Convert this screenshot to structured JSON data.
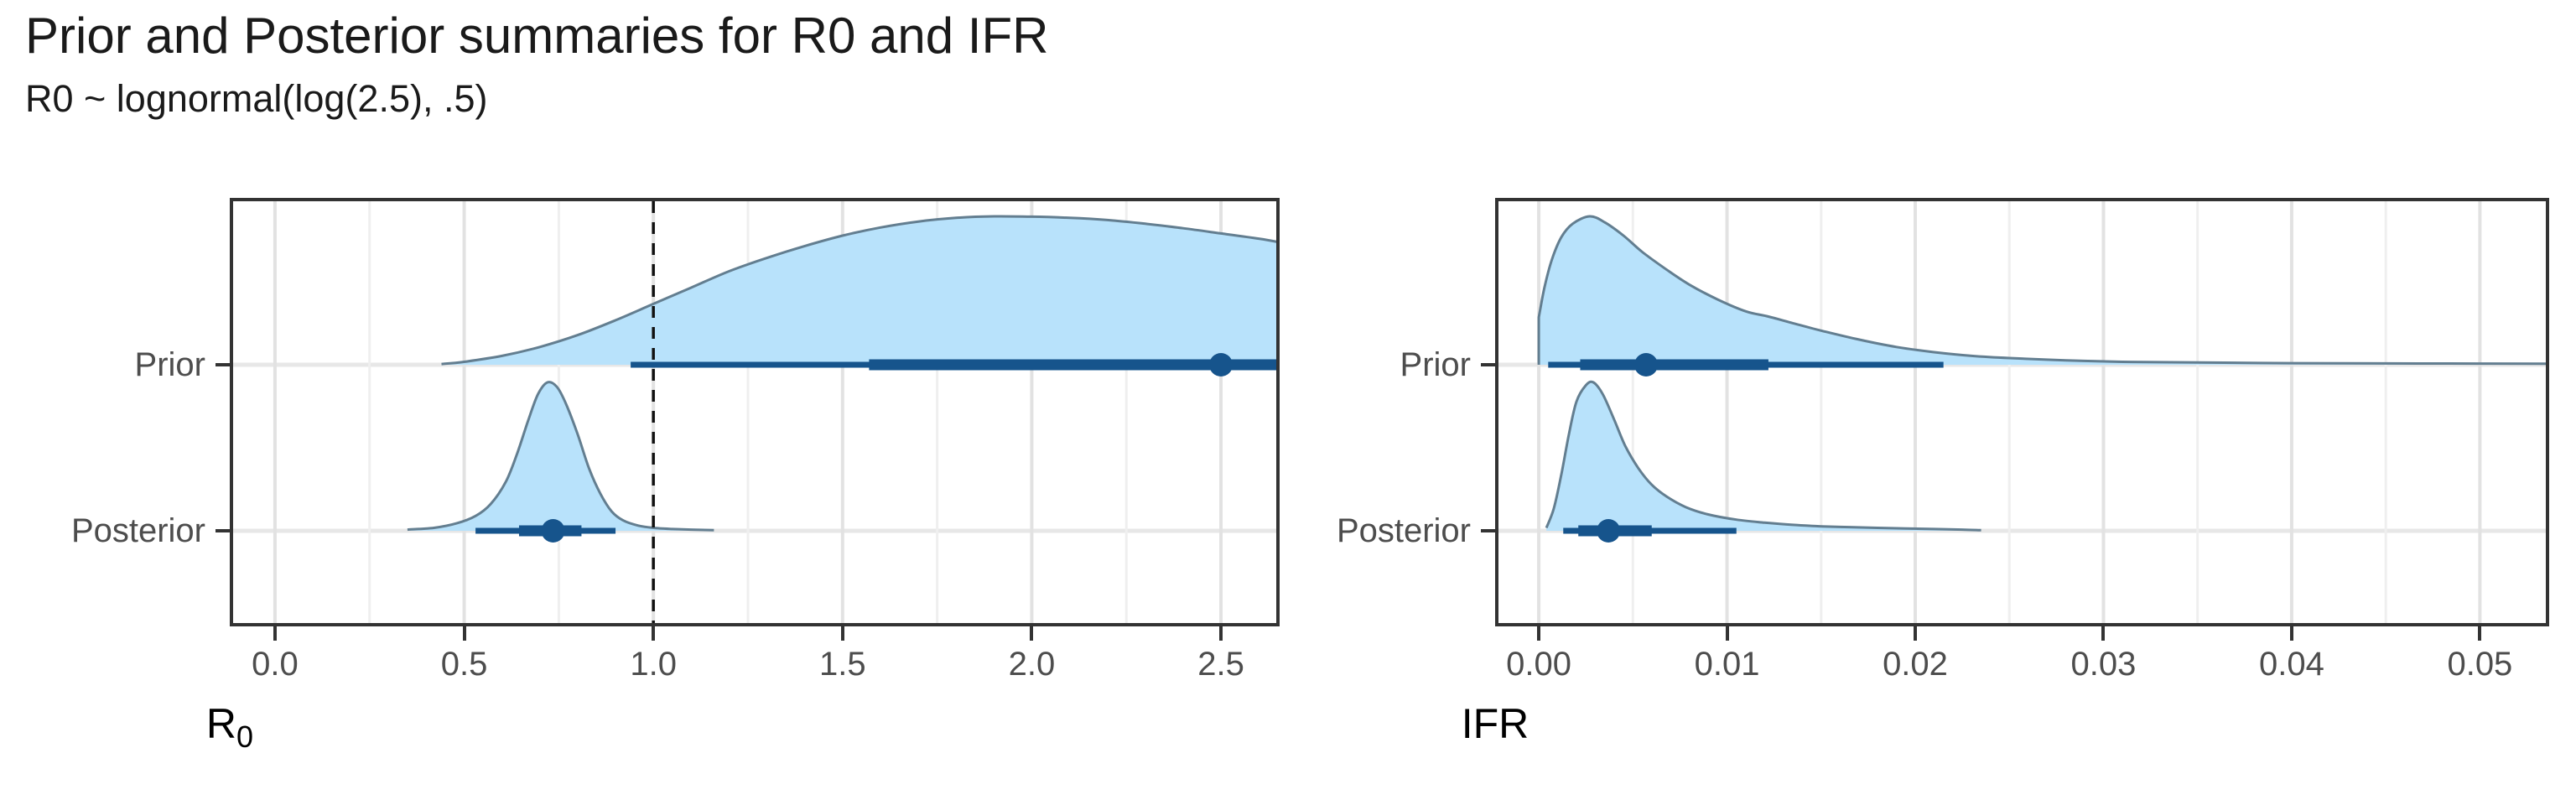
{
  "title": "Prior and Posterior summaries for R0 and IFR",
  "subtitle": "R0 ~ lognormal(log(2.5), .5)",
  "colors": {
    "background": "#ffffff",
    "density_fill": "#b8e2fb",
    "density_stroke": "#637e90",
    "interval": "#16548c",
    "grid_major": "#e2e2e2",
    "grid_minor": "#efefef",
    "row_line": "#e7e7e7",
    "panel_border": "#333333",
    "tick": "#333333",
    "text_muted": "#4d4d4d",
    "text": "#1a1a1a",
    "reference_line": "#111111"
  },
  "y_axis": {
    "rows": [
      "Prior",
      "Posterior"
    ]
  },
  "chart_data": [
    {
      "id": "r0",
      "type": "area",
      "xlabel": "R0",
      "axis_title_main": "R",
      "axis_title_sub": "0",
      "xlim": [
        -0.1195,
        2.655
      ],
      "legend": "none",
      "grid": "on",
      "reference_line_x": 1.0,
      "ticks": [
        {
          "v": 0.0,
          "label": "0.0"
        },
        {
          "v": 0.5,
          "label": "0.5"
        },
        {
          "v": 1.0,
          "label": "1.0"
        },
        {
          "v": 1.5,
          "label": "1.5"
        },
        {
          "v": 2.0,
          "label": "2.0"
        },
        {
          "v": 2.5,
          "label": "2.5"
        }
      ],
      "rows": [
        {
          "label": "Prior",
          "point": 2.5,
          "ci66": [
            1.57,
            null
          ],
          "ci95": [
            0.94,
            null
          ],
          "left_cliff": false,
          "density_x": [
            0.44,
            0.5,
            0.6,
            0.7,
            0.8,
            0.9,
            1.0,
            1.1,
            1.2,
            1.3,
            1.4,
            1.5,
            1.6,
            1.7,
            1.8,
            1.9,
            2.0,
            2.1,
            2.2,
            2.3,
            2.4,
            2.5,
            2.6,
            2.655
          ],
          "density_h": [
            0.005,
            0.02,
            0.06,
            0.12,
            0.2,
            0.3,
            0.41,
            0.52,
            0.63,
            0.72,
            0.8,
            0.87,
            0.925,
            0.965,
            0.99,
            1.0,
            0.998,
            0.99,
            0.975,
            0.95,
            0.92,
            0.885,
            0.85,
            0.825
          ]
        },
        {
          "label": "Posterior",
          "point": 0.735,
          "ci66": [
            0.645,
            0.81
          ],
          "ci95": [
            0.53,
            0.9
          ],
          "left_cliff": false,
          "density_x": [
            0.35,
            0.42,
            0.48,
            0.53,
            0.57,
            0.61,
            0.64,
            0.67,
            0.695,
            0.72,
            0.745,
            0.77,
            0.8,
            0.83,
            0.86,
            0.89,
            0.92,
            0.96,
            1.0,
            1.05,
            1.1,
            1.16
          ],
          "density_h": [
            0.008,
            0.02,
            0.05,
            0.1,
            0.18,
            0.33,
            0.52,
            0.75,
            0.92,
            1.0,
            0.97,
            0.85,
            0.65,
            0.42,
            0.25,
            0.13,
            0.07,
            0.035,
            0.02,
            0.012,
            0.008,
            0.004
          ]
        }
      ]
    },
    {
      "id": "ifr",
      "type": "area",
      "xlabel": "IFR",
      "axis_title_main": "IFR",
      "axis_title_sub": "",
      "xlim": [
        -0.00232,
        0.05368
      ],
      "legend": "none",
      "grid": "on",
      "reference_line_x": null,
      "ticks": [
        {
          "v": 0.0,
          "label": "0.00"
        },
        {
          "v": 0.01,
          "label": "0.01"
        },
        {
          "v": 0.02,
          "label": "0.02"
        },
        {
          "v": 0.03,
          "label": "0.03"
        },
        {
          "v": 0.04,
          "label": "0.04"
        },
        {
          "v": 0.05,
          "label": "0.05"
        }
      ],
      "rows": [
        {
          "label": "Prior",
          "point": 0.0057,
          "ci66": [
            0.0022,
            0.0122
          ],
          "ci95": [
            0.0005,
            0.0215
          ],
          "left_cliff": true,
          "density_x": [
            0.0,
            0.0003,
            0.0007,
            0.0012,
            0.0018,
            0.0027,
            0.0035,
            0.0045,
            0.0055,
            0.0068,
            0.008,
            0.0095,
            0.011,
            0.0122,
            0.0135,
            0.015,
            0.017,
            0.019,
            0.021,
            0.023,
            0.025,
            0.028,
            0.031,
            0.035,
            0.04,
            0.045,
            0.05,
            0.0536
          ],
          "density_h": [
            0.32,
            0.52,
            0.71,
            0.86,
            0.95,
            1.0,
            0.96,
            0.87,
            0.76,
            0.64,
            0.54,
            0.44,
            0.36,
            0.325,
            0.28,
            0.23,
            0.17,
            0.12,
            0.085,
            0.06,
            0.045,
            0.03,
            0.02,
            0.015,
            0.011,
            0.009,
            0.008,
            0.007
          ]
        },
        {
          "label": "Posterior",
          "point": 0.0037,
          "ci66": [
            0.0021,
            0.006
          ],
          "ci95": [
            0.0013,
            0.0105
          ],
          "left_cliff": false,
          "density_x": [
            0.0004,
            0.0008,
            0.0012,
            0.0016,
            0.002,
            0.0025,
            0.0029,
            0.0034,
            0.004,
            0.0046,
            0.0053,
            0.006,
            0.0068,
            0.0078,
            0.009,
            0.0105,
            0.012,
            0.0135,
            0.015,
            0.0165,
            0.018,
            0.0195,
            0.021,
            0.0225,
            0.0235
          ],
          "density_h": [
            0.02,
            0.15,
            0.38,
            0.65,
            0.87,
            0.98,
            1.0,
            0.92,
            0.75,
            0.57,
            0.42,
            0.31,
            0.23,
            0.16,
            0.11,
            0.075,
            0.055,
            0.04,
            0.03,
            0.025,
            0.02,
            0.016,
            0.012,
            0.008,
            0.004
          ]
        }
      ]
    }
  ]
}
